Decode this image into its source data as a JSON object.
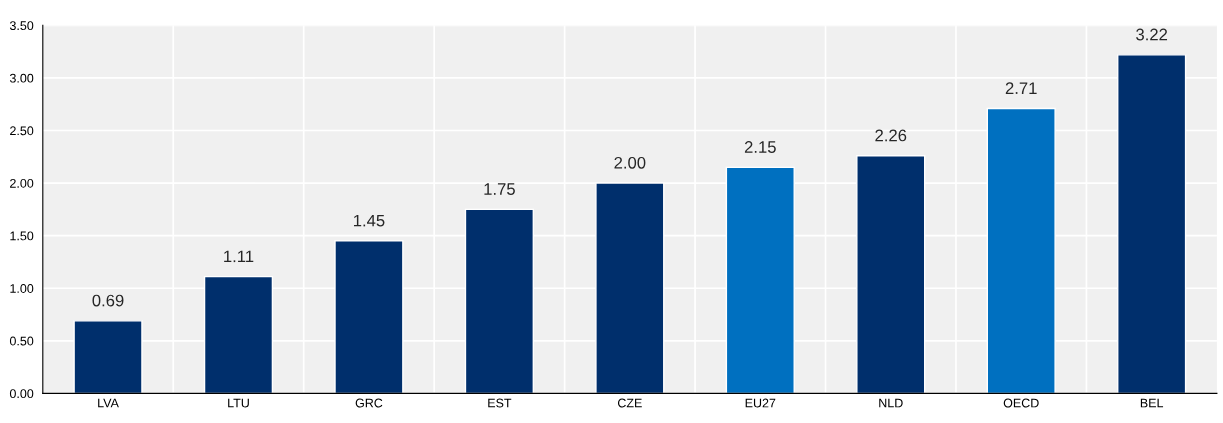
{
  "chart_data": {
    "type": "bar",
    "categories": [
      "LVA",
      "LTU",
      "GRC",
      "EST",
      "CZE",
      "EU27",
      "NLD",
      "OECD",
      "BEL"
    ],
    "values": [
      0.69,
      1.11,
      1.45,
      1.75,
      2.0,
      2.15,
      2.26,
      2.71,
      3.22
    ],
    "colors": [
      "#002f6c",
      "#002f6c",
      "#002f6c",
      "#002f6c",
      "#002f6c",
      "#0070c0",
      "#002f6c",
      "#0070c0",
      "#002f6c"
    ],
    "value_labels": [
      "0.69",
      "1.11",
      "1.45",
      "1.75",
      "2.00",
      "2.15",
      "2.26",
      "2.71",
      "3.22"
    ],
    "ylim": [
      0,
      3.5
    ],
    "yticks": [
      {
        "value": 0,
        "label": "0.00"
      },
      {
        "value": 0.5,
        "label": "0.50"
      },
      {
        "value": 1,
        "label": "1.00"
      },
      {
        "value": 1.5,
        "label": "1.50"
      },
      {
        "value": 2,
        "label": "2.00"
      },
      {
        "value": 2.5,
        "label": "2.50"
      },
      {
        "value": 3,
        "label": "3.00"
      },
      {
        "value": 3.5,
        "label": "3.50"
      }
    ],
    "grid": true
  }
}
